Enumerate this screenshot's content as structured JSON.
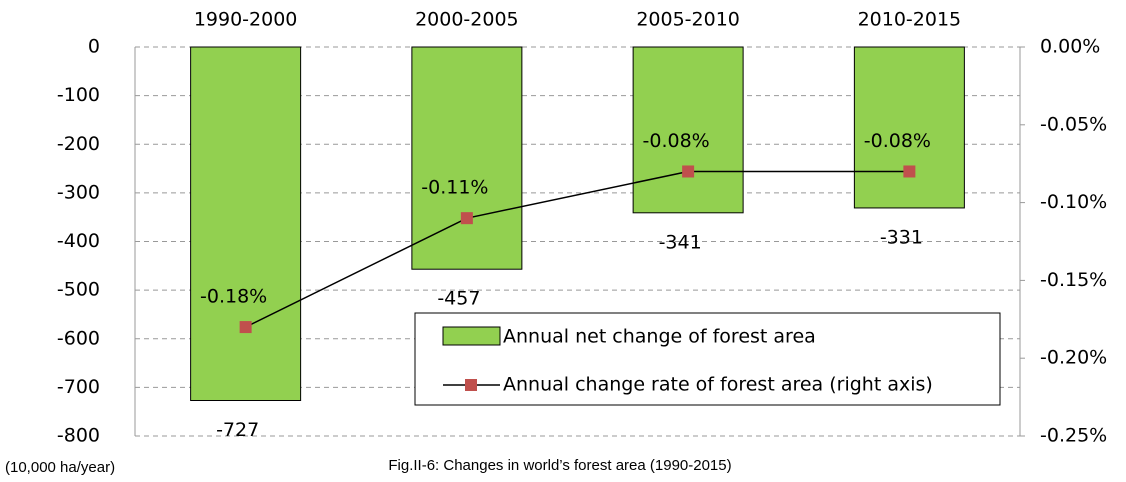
{
  "chart_data": {
    "type": "bar",
    "title": "Fig.II-6: Changes in world’s forest area (1990-2015)",
    "y_label": "(10,000 ha/year)",
    "categories": [
      "1990-2000",
      "2000-2005",
      "2005-2010",
      "2010-2015"
    ],
    "series": [
      {
        "name": "Annual net change of forest area",
        "type": "bar",
        "color": "#92d050",
        "values": [
          -727,
          -457,
          -341,
          -331
        ]
      },
      {
        "name": "Annual change rate of forest area (right axis)",
        "type": "line",
        "axis": "y2",
        "color": "#c0504d",
        "values": [
          -0.18,
          -0.11,
          -0.08,
          -0.08
        ],
        "value_labels": [
          "-0.18%",
          "-0.11%",
          "-0.08%",
          "-0.08%"
        ]
      }
    ],
    "ylim": [
      -800,
      0
    ],
    "yticks": [
      0,
      -100,
      -200,
      -300,
      -400,
      -500,
      -600,
      -700,
      -800
    ],
    "y2lim": [
      -0.25,
      0
    ],
    "y2ticks": [
      {
        "value": 0,
        "label": "0.00%"
      },
      {
        "value": -0.05,
        "label": "-0.05%"
      },
      {
        "value": -0.1,
        "label": "-0.10%"
      },
      {
        "value": -0.15,
        "label": "-0.15%"
      },
      {
        "value": -0.2,
        "label": "-0.20%"
      },
      {
        "value": -0.25,
        "label": "-0.25%"
      }
    ],
    "grid": true,
    "legend": "lower right"
  }
}
